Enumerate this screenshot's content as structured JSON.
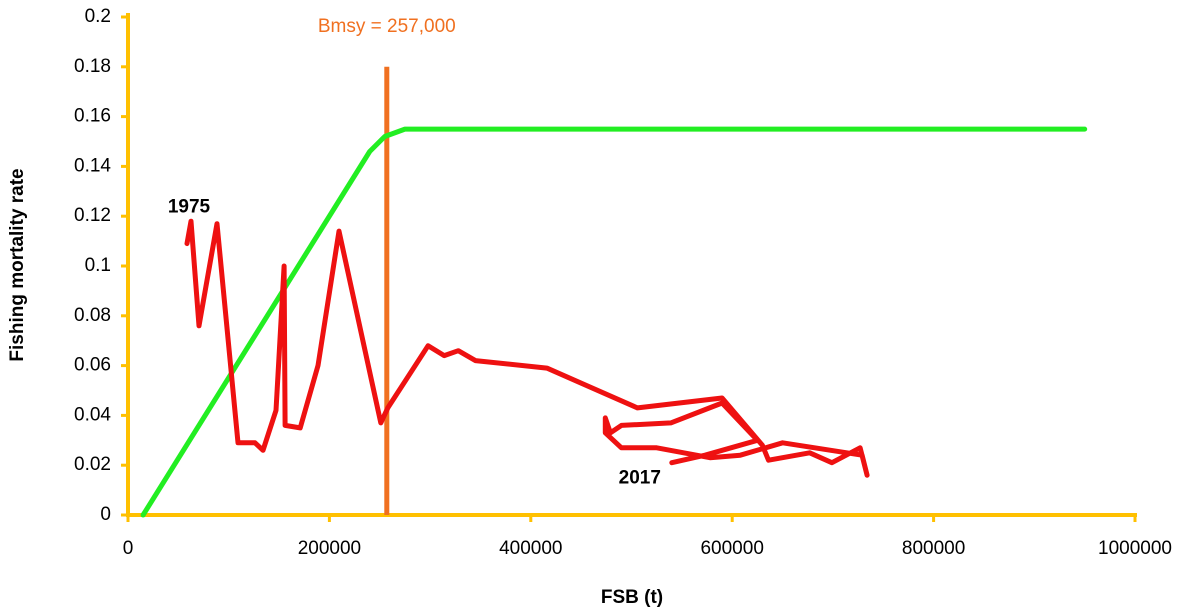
{
  "chart_data": {
    "type": "line",
    "xlabel": "FSB (t)",
    "ylabel": "Fishing mortality rate",
    "xlim": [
      0,
      1000000
    ],
    "xticks": [
      0,
      200000,
      400000,
      600000,
      800000,
      1000000
    ],
    "ylim": [
      0,
      0.2
    ],
    "yticks": [
      0,
      0.02,
      0.04,
      0.06,
      0.08,
      0.1,
      0.12,
      0.14,
      0.16,
      0.18,
      0.2
    ],
    "axis_color": "#FFC000",
    "series": [
      {
        "color": "#22EE22",
        "x": [
          15000,
          240000,
          255000,
          275000,
          950000
        ],
        "values": [
          0,
          0.146,
          0.152,
          0.155,
          0.155
        ]
      },
      {
        "color": "#EE1111",
        "x": [
          58600,
          62600,
          70500,
          88400,
          109200,
          126100,
          134100,
          147000,
          155000,
          156000,
          171000,
          188700,
          209500,
          251000,
          258000,
          298000,
          314000,
          328000,
          345000,
          416000,
          506000,
          590000,
          630000,
          636000,
          677000,
          699000,
          727000,
          734000,
          729000,
          650000,
          608000,
          578000,
          525000,
          490000,
          474000,
          474000,
          479000,
          490000,
          539000,
          590000,
          625000,
          573000,
          540000
        ],
        "values": [
          0.109,
          0.118,
          0.076,
          0.117,
          0.029,
          0.029,
          0.026,
          0.042,
          0.1,
          0.036,
          0.035,
          0.06,
          0.114,
          0.037,
          0.043,
          0.068,
          0.064,
          0.066,
          0.062,
          0.059,
          0.043,
          0.047,
          0.028,
          0.022,
          0.025,
          0.021,
          0.027,
          0.016,
          0.024,
          0.029,
          0.024,
          0.023,
          0.027,
          0.027,
          0.033,
          0.039,
          0.033,
          0.036,
          0.037,
          0.045,
          0.03,
          0.024,
          0.021
        ]
      }
    ],
    "vline": {
      "x": 257000,
      "ymax": 0.18,
      "color": "#F07020",
      "label": "Bmsy = 257,000"
    },
    "point_labels": [
      "1975",
      "2017"
    ]
  }
}
